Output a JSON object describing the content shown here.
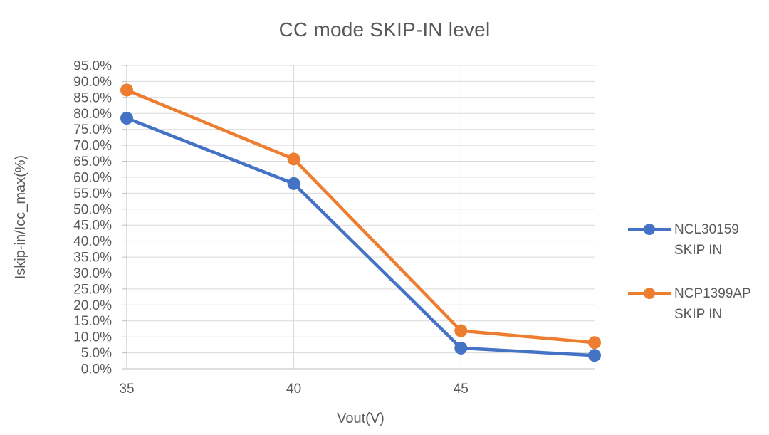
{
  "chart_data": {
    "type": "line",
    "title": "CC mode SKIP-IN level",
    "xlabel": "Vout(V)",
    "ylabel": "Iskip-in/Icc_max(%)",
    "x": [
      35,
      40,
      45,
      49
    ],
    "series": [
      {
        "name": "NCL30159 SKIP IN",
        "color": "#4472C4",
        "values": [
          78.5,
          58.0,
          6.5,
          4.2
        ]
      },
      {
        "name": "NCP1399AP SKIP IN",
        "color": "#ED7D31",
        "values": [
          87.3,
          65.7,
          11.9,
          8.2
        ]
      }
    ],
    "xlim": [
      35,
      49
    ],
    "ylim": [
      0,
      95
    ],
    "x_tick_values": [
      35,
      40,
      45
    ],
    "x_tick_labels": [
      "35",
      "40",
      "45"
    ],
    "y_tick_values": [
      95,
      90,
      85,
      80,
      75,
      70,
      65,
      60,
      55,
      50,
      45,
      40,
      35,
      30,
      25,
      20,
      15,
      10,
      5,
      0
    ],
    "y_tick_labels": [
      "95.0%",
      "90.0%",
      "85.0%",
      "80.0%",
      "75.0%",
      "70.0%",
      "65.0%",
      "60.0%",
      "55.0%",
      "50.0%",
      "45.0%",
      "40.0%",
      "35.0%",
      "30.0%",
      "25.0%",
      "20.0%",
      "15.0%",
      "10.0%",
      "5.0%",
      "0.0%"
    ],
    "grid": true,
    "legend_position": "right",
    "colors": {
      "text": "#595959",
      "gridline": "#D9D9D9",
      "axis": "#BFBFBF",
      "background": "#FFFFFF"
    }
  }
}
